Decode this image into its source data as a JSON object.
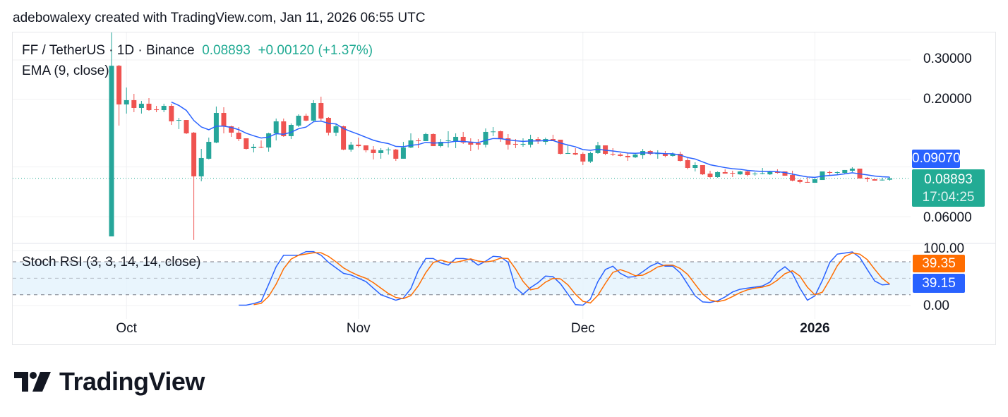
{
  "credit": "adebowalexy created with TradingView.com, Jan 11, 2026 06:55 UTC",
  "legend": {
    "symbol": "FF / TetherUS · 1D · Binance",
    "last": "0.08893",
    "change": "+0.00120 (+1.37%)",
    "ema": "EMA (9, close)",
    "stoch": "Stoch RSI (3, 3, 14, 14, close)"
  },
  "price_axis": {
    "labels": [
      "0.30000",
      "0.20000",
      "0.06000"
    ],
    "ema_tag": "0.09070",
    "last_tag": "0.08893",
    "countdown": "17:04:25"
  },
  "stoch_axis": {
    "top": "100.00",
    "bottom": "0.00",
    "d_tag": "39.35",
    "k_tag": "39.15"
  },
  "time_ticks": [
    {
      "label": "Oct",
      "date": "2025-10-01",
      "bold": false
    },
    {
      "label": "Nov",
      "date": "2025-11-01",
      "bold": false
    },
    {
      "label": "Dec",
      "date": "2025-12-01",
      "bold": false
    },
    {
      "label": "2026",
      "date": "2026-01-01",
      "bold": true
    }
  ],
  "brand": "TradingView",
  "colors": {
    "up": "#26a69a",
    "down": "#ef5350",
    "ema": "#2962ff",
    "k": "#2962ff",
    "d": "#ff6d00",
    "last": "#22ab94",
    "band": "#e3f2fd"
  },
  "chart_data": [
    {
      "type": "candlestick",
      "scale": "log",
      "ylim": [
        0.045,
        0.42
      ],
      "gridlines": [
        0.3,
        0.2,
        0.1,
        0.06
      ],
      "columns": [
        "date",
        "open",
        "high",
        "low",
        "close"
      ],
      "candles": [
        [
          "2025-09-29",
          0.049,
          0.398,
          0.049,
          0.2827
        ],
        [
          "2025-09-30",
          0.2827,
          0.2852,
          0.1529,
          0.19
        ],
        [
          "2025-10-01",
          0.19,
          0.2261,
          0.173,
          0.1985
        ],
        [
          "2025-10-02",
          0.1985,
          0.2119,
          0.1755,
          0.1833
        ],
        [
          "2025-10-03",
          0.1833,
          0.1971,
          0.173,
          0.1914
        ],
        [
          "2025-10-04",
          0.1914,
          0.2029,
          0.1781,
          0.1793
        ],
        [
          "2025-10-05",
          0.1807,
          0.1873,
          0.1755,
          0.1793
        ],
        [
          "2025-10-06",
          0.1793,
          0.1914,
          0.1755,
          0.1873
        ],
        [
          "2025-10-07",
          0.1873,
          0.1914,
          0.154,
          0.1597
        ],
        [
          "2025-10-08",
          0.1609,
          0.1656,
          0.1475,
          0.162
        ],
        [
          "2025-10-09",
          0.162,
          0.162,
          0.1402,
          0.1412
        ],
        [
          "2025-10-10",
          0.1422,
          0.1433,
          0.0473,
          0.0908
        ],
        [
          "2025-10-11",
          0.0908,
          0.1204,
          0.0863,
          0.1096
        ],
        [
          "2025-10-12",
          0.1088,
          0.1352,
          0.108,
          0.1294
        ],
        [
          "2025-10-13",
          0.1285,
          0.186,
          0.1276,
          0.1742
        ],
        [
          "2025-10-14",
          0.1742,
          0.1846,
          0.1412,
          0.1518
        ],
        [
          "2025-10-15",
          0.1518,
          0.1529,
          0.1362,
          0.1422
        ],
        [
          "2025-10-16",
          0.1422,
          0.1507,
          0.1304,
          0.1332
        ],
        [
          "2025-10-17",
          0.1342,
          0.1342,
          0.1195,
          0.1204
        ],
        [
          "2025-10-18",
          0.1213,
          0.1267,
          0.1161,
          0.123
        ],
        [
          "2025-10-19",
          0.123,
          0.1313,
          0.1213,
          0.1221
        ],
        [
          "2025-10-20",
          0.1221,
          0.1422,
          0.117,
          0.1412
        ],
        [
          "2025-10-21",
          0.1412,
          0.1644,
          0.1313,
          0.1597
        ],
        [
          "2025-10-22",
          0.1597,
          0.1644,
          0.1362,
          0.1372
        ],
        [
          "2025-10-23",
          0.1372,
          0.1563,
          0.1332,
          0.154
        ],
        [
          "2025-10-24",
          0.1529,
          0.1717,
          0.1507,
          0.1692
        ],
        [
          "2025-10-25",
          0.1692,
          0.173,
          0.1597,
          0.1609
        ],
        [
          "2025-10-26",
          0.1609,
          0.1985,
          0.1597,
          0.1928
        ],
        [
          "2025-10-27",
          0.1928,
          0.2058,
          0.1609,
          0.1644
        ],
        [
          "2025-10-28",
          0.1656,
          0.1668,
          0.1382,
          0.1422
        ],
        [
          "2025-10-29",
          0.1422,
          0.1563,
          0.1372,
          0.1518
        ],
        [
          "2025-10-30",
          0.1518,
          0.1529,
          0.1187,
          0.1195
        ],
        [
          "2025-10-31",
          0.1195,
          0.1294,
          0.117,
          0.1257
        ],
        [
          "2025-11-01",
          0.1257,
          0.1352,
          0.1221,
          0.1239
        ],
        [
          "2025-11-02",
          0.1248,
          0.1248,
          0.1161,
          0.1187
        ],
        [
          "2025-11-03",
          0.1195,
          0.1239,
          0.108,
          0.1153
        ],
        [
          "2025-11-04",
          0.1153,
          0.1213,
          0.1088,
          0.1187
        ],
        [
          "2025-11-05",
          0.119,
          0.1221,
          0.1136,
          0.1195
        ],
        [
          "2025-11-06",
          0.1195,
          0.1204,
          0.1064,
          0.1088
        ],
        [
          "2025-11-07",
          0.1088,
          0.1294,
          0.1088,
          0.1221
        ],
        [
          "2025-11-08",
          0.1221,
          0.1412,
          0.1213,
          0.1313
        ],
        [
          "2025-11-09",
          0.1313,
          0.1342,
          0.1213,
          0.1304
        ],
        [
          "2025-11-10",
          0.1304,
          0.1422,
          0.1304,
          0.1402
        ],
        [
          "2025-11-11",
          0.1402,
          0.1412,
          0.1239,
          0.1239
        ],
        [
          "2025-11-12",
          0.1239,
          0.1332,
          0.1221,
          0.1294
        ],
        [
          "2025-11-13",
          0.1304,
          0.1443,
          0.1221,
          0.1313
        ],
        [
          "2025-11-14",
          0.1304,
          0.1412,
          0.1213,
          0.1362
        ],
        [
          "2025-11-15",
          0.1362,
          0.1433,
          0.1267,
          0.1285
        ],
        [
          "2025-11-16",
          0.1285,
          0.1342,
          0.1178,
          0.1257
        ],
        [
          "2025-11-17",
          0.1276,
          0.1332,
          0.1195,
          0.1257
        ],
        [
          "2025-11-18",
          0.1257,
          0.1486,
          0.1221,
          0.1433
        ],
        [
          "2025-11-19",
          0.1433,
          0.1507,
          0.1372,
          0.144
        ],
        [
          "2025-11-20",
          0.1443,
          0.1454,
          0.1294,
          0.1332
        ],
        [
          "2025-11-21",
          0.1342,
          0.1402,
          0.1195,
          0.1257
        ],
        [
          "2025-11-22",
          0.1267,
          0.1332,
          0.1213,
          0.1257
        ],
        [
          "2025-11-23",
          0.1257,
          0.1342,
          0.123,
          0.1267
        ],
        [
          "2025-11-24",
          0.1257,
          0.1392,
          0.1221,
          0.1332
        ],
        [
          "2025-11-25",
          0.1332,
          0.1362,
          0.1267,
          0.1304
        ],
        [
          "2025-11-26",
          0.1294,
          0.1352,
          0.1257,
          0.1332
        ],
        [
          "2025-11-27",
          0.1332,
          0.1392,
          0.1304,
          0.1313
        ],
        [
          "2025-11-28",
          0.1323,
          0.1323,
          0.1136,
          0.1144
        ],
        [
          "2025-11-29",
          0.1144,
          0.1257,
          0.1144,
          0.1153
        ],
        [
          "2025-11-30",
          0.1153,
          0.1213,
          0.1128,
          0.1136
        ],
        [
          "2025-12-01",
          0.1144,
          0.1161,
          0.1019,
          0.1057
        ],
        [
          "2025-12-02",
          0.1057,
          0.117,
          0.1042,
          0.1153
        ],
        [
          "2025-12-03",
          0.1153,
          0.1294,
          0.1144,
          0.1248
        ],
        [
          "2025-12-04",
          0.1248,
          0.1248,
          0.1128,
          0.1144
        ],
        [
          "2025-12-05",
          0.1144,
          0.1213,
          0.112,
          0.1136
        ],
        [
          "2025-12-06",
          0.1136,
          0.1153,
          0.1112,
          0.112
        ],
        [
          "2025-12-07",
          0.112,
          0.1153,
          0.1064,
          0.1104
        ],
        [
          "2025-12-08",
          0.1104,
          0.1144,
          0.1096,
          0.1136
        ],
        [
          "2025-12-09",
          0.1128,
          0.1204,
          0.1088,
          0.1178
        ],
        [
          "2025-12-10",
          0.1178,
          0.1187,
          0.1128,
          0.1144
        ],
        [
          "2025-12-11",
          0.1144,
          0.1187,
          0.1088,
          0.115
        ],
        [
          "2025-12-12",
          0.115,
          0.1178,
          0.1104,
          0.112
        ],
        [
          "2025-12-13",
          0.112,
          0.1161,
          0.1112,
          0.1144
        ],
        [
          "2025-12-14",
          0.1144,
          0.117,
          0.1057,
          0.1064
        ],
        [
          "2025-12-15",
          0.1072,
          0.1096,
          0.0976,
          0.099
        ],
        [
          "2025-12-16",
          0.099,
          0.1049,
          0.0955,
          0.1019
        ],
        [
          "2025-12-17",
          0.1019,
          0.1019,
          0.0921,
          0.0927
        ],
        [
          "2025-12-18",
          0.0934,
          0.0962,
          0.0895,
          0.0901
        ],
        [
          "2025-12-19",
          0.0901,
          0.0955,
          0.0895,
          0.0948
        ],
        [
          "2025-12-20",
          0.0948,
          0.0976,
          0.0934,
          0.0934
        ],
        [
          "2025-12-21",
          0.0941,
          0.0962,
          0.0901,
          0.0938
        ],
        [
          "2025-12-22",
          0.0927,
          0.0962,
          0.0921,
          0.0955
        ],
        [
          "2025-12-23",
          0.0955,
          0.0962,
          0.0908,
          0.0921
        ],
        [
          "2025-12-24",
          0.093,
          0.0948,
          0.0914,
          0.0934
        ],
        [
          "2025-12-25",
          0.0934,
          0.099,
          0.0927,
          0.0938
        ],
        [
          "2025-12-26",
          0.0927,
          0.0962,
          0.0921,
          0.0955
        ],
        [
          "2025-12-27",
          0.0955,
          0.0976,
          0.0934,
          0.0941
        ],
        [
          "2025-12-28",
          0.0955,
          0.0955,
          0.0914,
          0.0914
        ],
        [
          "2025-12-29",
          0.0921,
          0.0962,
          0.0863,
          0.0869
        ],
        [
          "2025-12-30",
          0.0875,
          0.0882,
          0.0844,
          0.0857
        ],
        [
          "2025-12-31",
          0.0857,
          0.0901,
          0.085,
          0.0855
        ],
        [
          "2026-01-01",
          0.085,
          0.0888,
          0.085,
          0.0882
        ],
        [
          "2026-01-02",
          0.0875,
          0.0955,
          0.0875,
          0.0955
        ],
        [
          "2026-01-03",
          0.0948,
          0.0962,
          0.0914,
          0.0941
        ],
        [
          "2026-01-04",
          0.0945,
          0.0955,
          0.0927,
          0.0948
        ],
        [
          "2026-01-05",
          0.0941,
          0.0969,
          0.0934,
          0.0969
        ],
        [
          "2026-01-06",
          0.0962,
          0.0997,
          0.0948,
          0.0983
        ],
        [
          "2026-01-07",
          0.0983,
          0.0983,
          0.0888,
          0.0888
        ],
        [
          "2026-01-08",
          0.0895,
          0.0901,
          0.0857,
          0.0882
        ],
        [
          "2026-01-09",
          0.0882,
          0.0882,
          0.0869,
          0.0869
        ],
        [
          "2026-01-10",
          0.0875,
          0.0895,
          0.0869,
          0.08773
        ],
        [
          "2026-01-11",
          0.08773,
          0.0901,
          0.0869,
          0.08893
        ]
      ],
      "overlay": {
        "name": "EMA (9, close)",
        "last": 0.0907
      }
    },
    {
      "type": "line",
      "ylim": [
        0,
        100
      ],
      "bands": [
        20,
        50,
        80
      ],
      "series": [
        {
          "name": "K",
          "last": 39.15,
          "values": [
            null,
            null,
            null,
            null,
            null,
            null,
            null,
            null,
            null,
            null,
            null,
            null,
            null,
            null,
            null,
            null,
            null,
            1,
            1,
            4,
            8,
            39,
            71,
            92,
            92,
            92,
            98.6,
            98.6,
            92,
            79,
            69,
            59,
            56,
            50,
            44,
            32,
            20,
            15,
            10,
            14,
            31,
            64,
            86,
            86,
            78,
            74,
            86,
            86,
            84,
            74,
            81,
            90,
            89,
            79,
            33,
            21,
            33,
            42,
            54,
            53,
            40,
            21,
            2,
            1,
            12,
            44,
            66,
            72,
            59,
            52,
            53,
            62,
            72,
            78,
            72,
            72,
            60,
            39,
            18,
            7,
            6,
            9,
            16,
            25,
            30,
            32,
            34,
            36,
            43,
            61,
            71,
            59,
            32,
            10,
            18,
            46,
            79,
            94,
            96,
            98,
            88,
            66,
            45,
            38,
            39.15
          ]
        },
        {
          "name": "D",
          "last": 39.35,
          "values": [
            null,
            null,
            null,
            null,
            null,
            null,
            null,
            null,
            null,
            null,
            null,
            null,
            null,
            null,
            null,
            null,
            null,
            null,
            null,
            2,
            4.3,
            17,
            39.3,
            67.3,
            85,
            92,
            94.2,
            96.4,
            96.4,
            89.9,
            80,
            69,
            61.3,
            55,
            50,
            42,
            32,
            22.3,
            15,
            13,
            18.3,
            36.3,
            60.3,
            78.7,
            83.3,
            79.3,
            79.3,
            82,
            85.3,
            81.3,
            79.7,
            81.7,
            86.7,
            86,
            67,
            44.3,
            29,
            32,
            43,
            49.7,
            49,
            38,
            21,
            8,
            5,
            19,
            40.7,
            60.7,
            65.7,
            61,
            54.7,
            55.7,
            62.3,
            70.7,
            74,
            74,
            68,
            57,
            39,
            21.3,
            10.3,
            7.3,
            10.3,
            16.7,
            23.7,
            29,
            32,
            34,
            37.7,
            46.7,
            58.3,
            63.7,
            54,
            33.7,
            20,
            24.7,
            47.7,
            73,
            89.7,
            96,
            94,
            84,
            66.3,
            49.7,
            39.35
          ]
        }
      ]
    }
  ]
}
